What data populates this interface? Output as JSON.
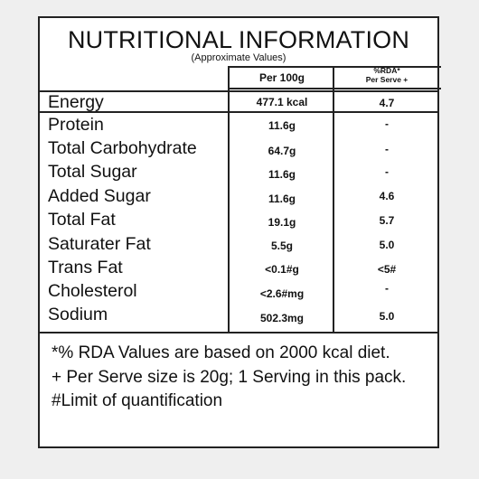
{
  "title": "NUTRITIONAL INFORMATION",
  "subtitle": "(Approximate Values)",
  "headers": {
    "per100": "Per 100g",
    "rda_line1": "%RDA*",
    "rda_line2": "Per Serve +"
  },
  "rows": [
    {
      "label": "Energy",
      "per100": "477.1 kcal",
      "rda": "4.7"
    },
    {
      "label": "Protein",
      "per100": "11.6g",
      "rda": "-"
    },
    {
      "label": "Total Carbohydrate",
      "per100": "64.7g",
      "rda": "-"
    },
    {
      "label": "Total Sugar",
      "per100": "11.6g",
      "rda": "-"
    },
    {
      "label": "Added Sugar",
      "per100": "11.6g",
      "rda": "4.6"
    },
    {
      "label": "Total Fat",
      "per100": "19.1g",
      "rda": "5.7"
    },
    {
      "label": "Saturater Fat",
      "per100": "5.5g",
      "rda": "5.0"
    },
    {
      "label": "Trans Fat",
      "per100": "<0.1#g",
      "rda": "<5#"
    },
    {
      "label": "Cholesterol",
      "per100": "<2.6#mg",
      "rda": "-"
    },
    {
      "label": "Sodium",
      "per100": "502.3mg",
      "rda": "5.0"
    }
  ],
  "footnotes": [
    "*% RDA Values are based on 2000 kcal diet.",
    "+ Per Serve size is 20g; 1 Serving in this pack.",
    "#Limit of quantification"
  ]
}
